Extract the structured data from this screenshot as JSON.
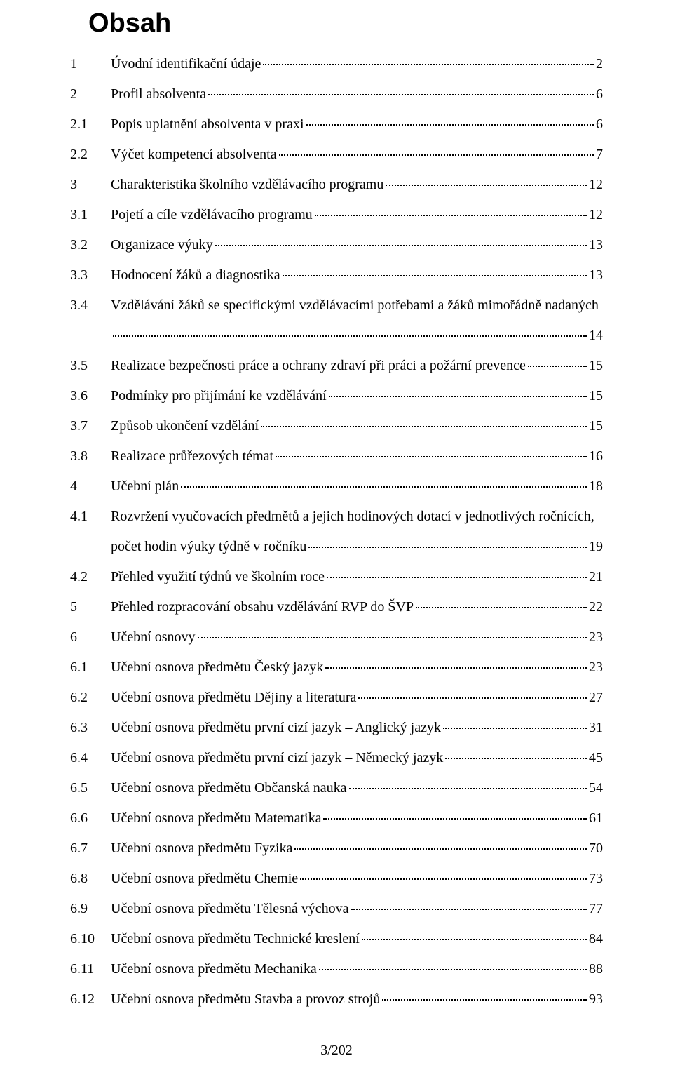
{
  "title": "Obsah",
  "footer": "3/202",
  "toc": [
    {
      "num": "1",
      "title": "Úvodní identifikační údaje",
      "page": "2"
    },
    {
      "num": "2",
      "title": "Profil absolventa",
      "page": "6"
    },
    {
      "num": "2.1",
      "title": "Popis uplatnění absolventa v praxi",
      "page": "6"
    },
    {
      "num": "2.2",
      "title": "Výčet kompetencí absolventa",
      "page": "7"
    },
    {
      "num": "3",
      "title": "Charakteristika školního vzdělávacího programu",
      "page": "12"
    },
    {
      "num": "3.1",
      "title": "Pojetí a cíle vzdělávacího programu",
      "page": "12"
    },
    {
      "num": "3.2",
      "title": "Organizace výuky",
      "page": "13"
    },
    {
      "num": "3.3",
      "title": "Hodnocení žáků a diagnostika",
      "page": "13"
    },
    {
      "num": "3.4",
      "title_l1": "Vzdělávání žáků se specifickými vzdělávacími potřebami a žáků mimořádně nadaných",
      "title_l2": "",
      "page": "14",
      "wrap": true
    },
    {
      "num": "3.5",
      "title": "Realizace bezpečnosti práce a ochrany zdraví při práci a požární prevence",
      "page": "15"
    },
    {
      "num": "3.6",
      "title": "Podmínky pro přijímání ke vzdělávání",
      "page": "15"
    },
    {
      "num": "3.7",
      "title": "Způsob ukončení vzdělání",
      "page": "15"
    },
    {
      "num": "3.8",
      "title": "Realizace průřezových témat",
      "page": "16"
    },
    {
      "num": "4",
      "title": "Učební plán",
      "page": "18"
    },
    {
      "num": "4.1",
      "title_l1": "Rozvržení vyučovacích předmětů a jejich hodinových dotací v jednotlivých ročnících,",
      "title_l2": "počet hodin výuky týdně v ročníku",
      "page": "19",
      "wrap": true
    },
    {
      "num": "4.2",
      "title": "Přehled využití týdnů ve školním roce",
      "page": "21"
    },
    {
      "num": "5",
      "title": "Přehled rozpracování obsahu vzdělávání RVP do ŠVP",
      "page": "22"
    },
    {
      "num": "6",
      "title": "Učební osnovy",
      "page": "23"
    },
    {
      "num": "6.1",
      "title": "Učební osnova předmětu Český jazyk",
      "page": "23"
    },
    {
      "num": "6.2",
      "title": "Učební osnova předmětu Dějiny a literatura",
      "page": "27"
    },
    {
      "num": "6.3",
      "title": "Učební osnova předmětu první cizí jazyk – Anglický jazyk",
      "page": "31"
    },
    {
      "num": "6.4",
      "title": "Učební osnova předmětu první cizí jazyk – Německý jazyk",
      "page": "45"
    },
    {
      "num": "6.5",
      "title": "Učební osnova předmětu Občanská nauka",
      "page": "54"
    },
    {
      "num": "6.6",
      "title": "Učební osnova předmětu Matematika",
      "page": "61"
    },
    {
      "num": "6.7",
      "title": "Učební osnova předmětu Fyzika",
      "page": "70"
    },
    {
      "num": "6.8",
      "title": "Učební osnova předmětu Chemie",
      "page": "73"
    },
    {
      "num": "6.9",
      "title": "Učební osnova předmětu Tělesná výchova",
      "page": "77"
    },
    {
      "num": "6.10",
      "title": "Učební osnova předmětu Technické kreslení",
      "page": "84"
    },
    {
      "num": "6.11",
      "title": "Učební osnova předmětu Mechanika",
      "page": "88"
    },
    {
      "num": "6.12",
      "title": "Učební osnova předmětu Stavba a provoz strojů",
      "page": "93"
    }
  ]
}
